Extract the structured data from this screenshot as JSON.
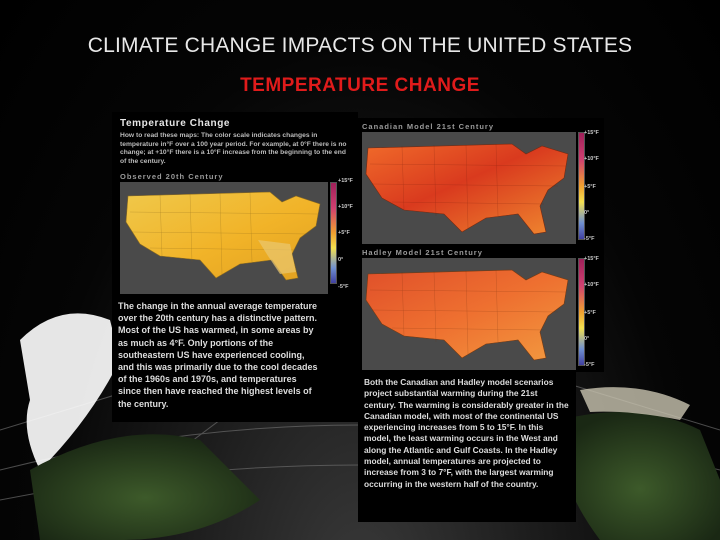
{
  "slide": {
    "title": "CLIMATE CHANGE IMPACTS ON THE UNITED STATES",
    "subtitle": "TEMPERATURE CHANGE"
  },
  "left_panel": {
    "heading": "Temperature Change",
    "howto": "How to read these maps: The color scale indicates changes in temperature in°F over a 100 year period.  For example, at 0°F there is no change; at +10°F there is a 10°F increase from the beginning to the end of the century.",
    "observed_label": "Observed 20th Century",
    "observed_scale": [
      "+15°F",
      "+10°F",
      "+5°F",
      "0°",
      "-5°F"
    ],
    "body": "The change in the annual average temperature over the 20th century has a distinctive pattern. Most of the US has warmed, in some areas by as much as 4°F. Only portions of the southeastern US have experienced cooling, and this was primarily due to the cool decades of the 1960s and 1970s, and temperatures since then have reached the highest levels of the century."
  },
  "right_panel": {
    "canadian_label": "Canadian Model 21st Century",
    "canadian_scale": [
      "+15°F",
      "+10°F",
      "+5°F",
      "0°",
      "-5°F"
    ],
    "hadley_label": "Hadley Model 21st Century",
    "hadley_scale": [
      "+15°F",
      "+10°F",
      "+5°F",
      "0°",
      "-5°F"
    ],
    "body": "Both the Canadian and Hadley model scenarios project substantial warming during the 21st century. The warming is considerably greater in the Canadian model, with most of the continental US experiencing increases from 5 to 15°F. In this model, the least warming occurs in the West and along the Atlantic and Gulf Coasts. In the Hadley model, annual temperatures are projected to increase from 3 to 7°F, with the largest warming occurring in the western half of the country."
  }
}
